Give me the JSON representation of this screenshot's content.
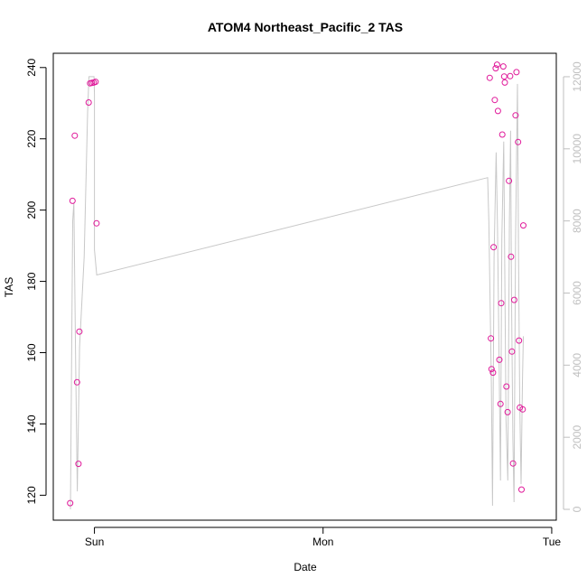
{
  "chart_data": {
    "type": "scatter",
    "title": "ATOM4 Northeast_Pacific_2 TAS",
    "xlabel": "Date",
    "ylabel": "TAS",
    "x_ticks": [
      {
        "value": 1.0,
        "label": "Sun"
      },
      {
        "value": 2.0,
        "label": "Mon"
      },
      {
        "value": 3.0,
        "label": "Tue"
      }
    ],
    "xlim": [
      0.82,
      3.02
    ],
    "ylim": [
      113,
      244
    ],
    "y_ticks": [
      120,
      140,
      160,
      180,
      200,
      220,
      240
    ],
    "y2lim": [
      -300,
      12650
    ],
    "y2_ticks": [
      "0",
      "2000",
      "4000",
      "6000",
      "8000",
      "10000",
      "12000"
    ],
    "y2_tick_values": [
      0,
      2000,
      4000,
      6000,
      8000,
      10000,
      12000
    ],
    "colors": {
      "points": "#e0199a",
      "altitude_line": "#c8c8c8",
      "right_axis": "#bfbfbf",
      "frame": "#000000"
    },
    "series": [
      {
        "values": [
          {
            "x": 0.894,
            "y": 117.8
          },
          {
            "x": 0.904,
            "y": 202.6
          },
          {
            "x": 0.914,
            "y": 220.9
          },
          {
            "x": 0.924,
            "y": 151.7
          },
          {
            "x": 0.93,
            "y": 128.8
          },
          {
            "x": 0.934,
            "y": 165.9
          },
          {
            "x": 0.975,
            "y": 230.2
          },
          {
            "x": 0.981,
            "y": 235.6
          },
          {
            "x": 0.989,
            "y": 235.7
          },
          {
            "x": 0.997,
            "y": 235.8
          },
          {
            "x": 1.005,
            "y": 236.0
          },
          {
            "x": 1.009,
            "y": 196.3
          },
          {
            "x": 2.729,
            "y": 237.1
          },
          {
            "x": 2.734,
            "y": 164.0
          },
          {
            "x": 2.737,
            "y": 155.4
          },
          {
            "x": 2.743,
            "y": 154.4
          },
          {
            "x": 2.746,
            "y": 189.6
          },
          {
            "x": 2.751,
            "y": 230.9
          },
          {
            "x": 2.755,
            "y": 239.8
          },
          {
            "x": 2.761,
            "y": 240.8
          },
          {
            "x": 2.765,
            "y": 227.8
          },
          {
            "x": 2.771,
            "y": 158.0
          },
          {
            "x": 2.776,
            "y": 145.6
          },
          {
            "x": 2.779,
            "y": 173.9
          },
          {
            "x": 2.784,
            "y": 221.2
          },
          {
            "x": 2.788,
            "y": 240.3
          },
          {
            "x": 2.792,
            "y": 237.5
          },
          {
            "x": 2.795,
            "y": 235.8
          },
          {
            "x": 2.802,
            "y": 150.5
          },
          {
            "x": 2.807,
            "y": 143.3
          },
          {
            "x": 2.813,
            "y": 208.2
          },
          {
            "x": 2.818,
            "y": 237.6
          },
          {
            "x": 2.822,
            "y": 186.9
          },
          {
            "x": 2.826,
            "y": 160.3
          },
          {
            "x": 2.831,
            "y": 128.9
          },
          {
            "x": 2.836,
            "y": 174.8
          },
          {
            "x": 2.842,
            "y": 226.6
          },
          {
            "x": 2.846,
            "y": 238.7
          },
          {
            "x": 2.853,
            "y": 219.1
          },
          {
            "x": 2.857,
            "y": 163.4
          },
          {
            "x": 2.861,
            "y": 144.6
          },
          {
            "x": 2.868,
            "y": 121.6
          },
          {
            "x": 2.873,
            "y": 144.1
          },
          {
            "x": 2.876,
            "y": 195.7
          }
        ]
      }
    ],
    "altitude_line": [
      {
        "x": 0.895,
        "y2": 0
      },
      {
        "x": 0.905,
        "y2": 8000
      },
      {
        "x": 0.91,
        "y2": 8500
      },
      {
        "x": 0.918,
        "y2": 4000
      },
      {
        "x": 0.925,
        "y2": 500
      },
      {
        "x": 0.935,
        "y2": 4500
      },
      {
        "x": 0.955,
        "y2": 7000
      },
      {
        "x": 0.97,
        "y2": 11000
      },
      {
        "x": 0.976,
        "y2": 12000
      },
      {
        "x": 0.998,
        "y2": 12000
      },
      {
        "x": 1.0,
        "y2": 11500
      },
      {
        "x": 1.0,
        "y2": 7200
      },
      {
        "x": 1.01,
        "y2": 6500
      },
      {
        "x": 2.72,
        "y2": 9200
      },
      {
        "x": 2.725,
        "y2": 8000
      },
      {
        "x": 2.736,
        "y2": 3500
      },
      {
        "x": 2.741,
        "y2": 100
      },
      {
        "x": 2.748,
        "y2": 7000
      },
      {
        "x": 2.757,
        "y2": 9900
      },
      {
        "x": 2.763,
        "y2": 7800
      },
      {
        "x": 2.77,
        "y2": 4000
      },
      {
        "x": 2.776,
        "y2": 800
      },
      {
        "x": 2.782,
        "y2": 7500
      },
      {
        "x": 2.79,
        "y2": 10200
      },
      {
        "x": 2.795,
        "y2": 6500
      },
      {
        "x": 2.8,
        "y2": 2500
      },
      {
        "x": 2.808,
        "y2": 800
      },
      {
        "x": 2.815,
        "y2": 8000
      },
      {
        "x": 2.82,
        "y2": 10500
      },
      {
        "x": 2.824,
        "y2": 6000
      },
      {
        "x": 2.83,
        "y2": 2000
      },
      {
        "x": 2.835,
        "y2": 200
      },
      {
        "x": 2.842,
        "y2": 7500
      },
      {
        "x": 2.85,
        "y2": 11800
      },
      {
        "x": 2.855,
        "y2": 7000
      },
      {
        "x": 2.86,
        "y2": 3000
      },
      {
        "x": 2.866,
        "y2": 700
      },
      {
        "x": 2.872,
        "y2": 3500
      },
      {
        "x": 2.876,
        "y2": 4800
      }
    ]
  }
}
